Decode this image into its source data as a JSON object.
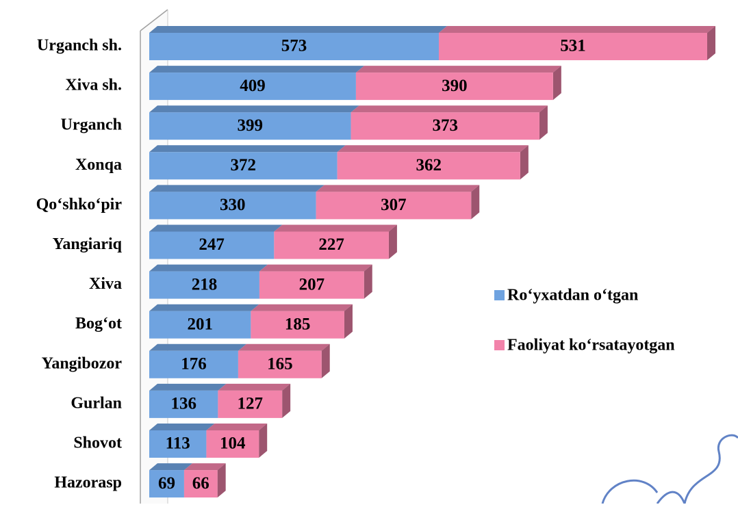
{
  "chart_data": {
    "type": "bar",
    "orientation": "horizontal",
    "stacked": true,
    "categories": [
      "Urganch sh.",
      "Xiva sh.",
      "Urganch",
      "Xonqa",
      "Qo‘shko‘pir",
      "Yangiariq",
      "Xiva",
      "Bog‘ot",
      "Yangibozor",
      "Gurlan",
      "Shovot",
      "Hazorasp"
    ],
    "series": [
      {
        "name": "Ro‘yxatdan o‘tgan",
        "color": "#6fa3e0",
        "values": [
          573,
          409,
          399,
          372,
          330,
          247,
          218,
          201,
          176,
          136,
          113,
          69
        ]
      },
      {
        "name": "Faoliyat ko‘rsatayotgan",
        "color": "#f283aa",
        "values": [
          531,
          390,
          373,
          362,
          307,
          227,
          207,
          185,
          165,
          127,
          104,
          66
        ]
      }
    ],
    "legend": "right"
  }
}
